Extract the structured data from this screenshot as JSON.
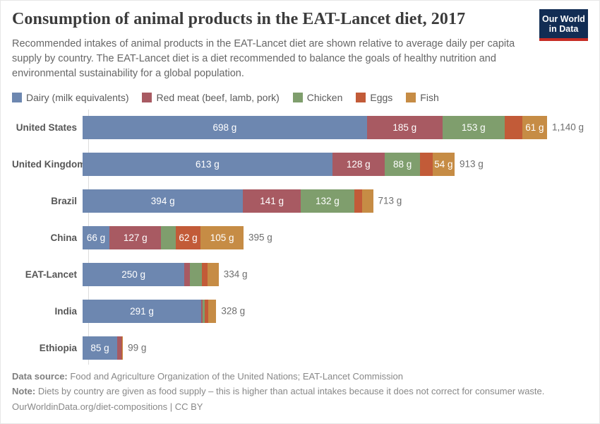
{
  "header": {
    "title": "Consumption of animal products in the EAT-Lancet diet, 2017",
    "subtitle": "Recommended intakes of animal products in the EAT-Lancet diet are shown relative to average daily per capita supply by country. The EAT-Lancet diet is a diet recommended to balance the goals of healthy nutrition and environmental sustainability for a global population.",
    "logo": {
      "line1": "Our World",
      "line2": "in Data",
      "bg_color": "#122D54",
      "accent_color": "#C62C24"
    }
  },
  "chart_data": {
    "type": "bar",
    "orientation": "horizontal",
    "stacked": true,
    "unit": "g",
    "xlim": [
      0,
      1140
    ],
    "grid": false,
    "legend_position": "top",
    "series_names": [
      "Dairy (milk equivalents)",
      "Red meat (beef, lamb, pork)",
      "Chicken",
      "Eggs",
      "Fish"
    ],
    "series_colors": [
      "#6D87B0",
      "#A85A62",
      "#7F9E6D",
      "#C25B38",
      "#C68C45"
    ],
    "categories": [
      "United States",
      "United Kingdom",
      "Brazil",
      "China",
      "EAT-Lancet",
      "India",
      "Ethiopia"
    ],
    "rows": [
      {
        "category": "United States",
        "total": 1140,
        "total_label": "1,140 g",
        "values": [
          698,
          185,
          153,
          43,
          61
        ],
        "labels": [
          "698 g",
          "185 g",
          "153 g",
          "",
          "61 g"
        ]
      },
      {
        "category": "United Kingdom",
        "total": 913,
        "total_label": "913 g",
        "values": [
          613,
          128,
          88,
          30,
          54
        ],
        "labels": [
          "613 g",
          "128 g",
          "88 g",
          "",
          "54 g"
        ]
      },
      {
        "category": "Brazil",
        "total": 713,
        "total_label": "713 g",
        "values": [
          394,
          141,
          132,
          19,
          27
        ],
        "labels": [
          "394 g",
          "141 g",
          "132 g",
          "",
          ""
        ]
      },
      {
        "category": "China",
        "total": 395,
        "total_label": "395 g",
        "values": [
          66,
          127,
          35,
          62,
          105
        ],
        "labels": [
          "66 g",
          "127 g",
          "",
          "62 g",
          "105 g"
        ]
      },
      {
        "category": "EAT-Lancet",
        "total": 334,
        "total_label": "334 g",
        "values": [
          250,
          14,
          29,
          13,
          28
        ],
        "labels": [
          "250 g",
          "",
          "",
          "",
          ""
        ]
      },
      {
        "category": "India",
        "total": 328,
        "total_label": "328 g",
        "values": [
          291,
          4,
          4,
          9,
          20
        ],
        "labels": [
          "291 g",
          "",
          "",
          "",
          ""
        ]
      },
      {
        "category": "Ethiopia",
        "total": 99,
        "total_label": "99 g",
        "values": [
          85,
          10,
          1,
          1,
          2
        ],
        "labels": [
          "85 g",
          "",
          "",
          "",
          ""
        ]
      }
    ]
  },
  "footer": {
    "source_label": "Data source:",
    "source_text": " Food and Agriculture Organization of the United Nations; EAT-Lancet Commission",
    "note_label": "Note:",
    "note_text": " Diets by country are given as food supply – this is higher than actual intakes because it does not correct for consumer waste.",
    "credit": "OurWorldinData.org/diet-compositions | CC BY"
  }
}
